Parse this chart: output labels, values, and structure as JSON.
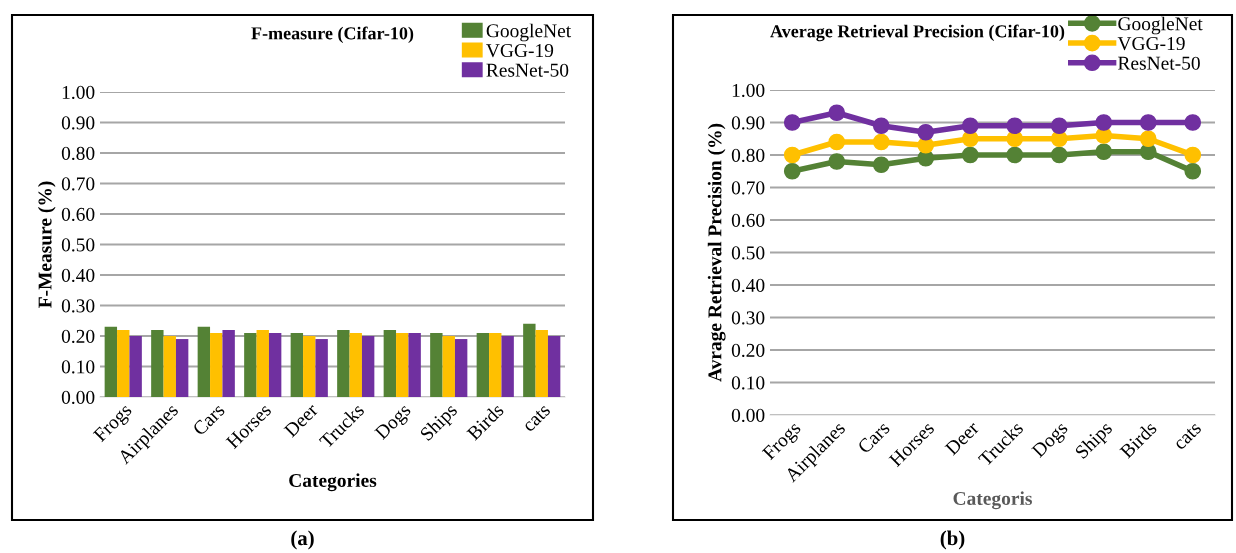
{
  "chart_data": [
    {
      "type": "bar",
      "title": "F-measure (Cifar-10)",
      "xlabel": "Categories",
      "ylabel": "F-Measure (%)",
      "categories": [
        "Frogs",
        "Airplanes",
        "Cars",
        "Horses",
        "Deer",
        "Trucks",
        "Dogs",
        "Ships",
        "Birds",
        "cats"
      ],
      "series": [
        {
          "name": "GoogleNet",
          "color": "#548235",
          "values": [
            0.23,
            0.22,
            0.23,
            0.21,
            0.21,
            0.22,
            0.22,
            0.21,
            0.21,
            0.24
          ]
        },
        {
          "name": "VGG-19",
          "color": "#ffc000",
          "values": [
            0.22,
            0.2,
            0.21,
            0.22,
            0.2,
            0.21,
            0.21,
            0.2,
            0.21,
            0.22
          ]
        },
        {
          "name": "ResNet-50",
          "color": "#7030a0",
          "values": [
            0.2,
            0.19,
            0.22,
            0.21,
            0.19,
            0.2,
            0.21,
            0.19,
            0.2,
            0.2
          ]
        }
      ],
      "ylim": [
        0,
        1
      ],
      "yticks": [
        {
          "value": 0,
          "label": "0.00"
        },
        {
          "value": 0.1,
          "label": "0.10"
        },
        {
          "value": 0.2,
          "label": "0.20"
        },
        {
          "value": 0.3,
          "label": "0.30"
        },
        {
          "value": 0.4,
          "label": "0.40"
        },
        {
          "value": 0.5,
          "label": "0.50"
        },
        {
          "value": 0.6,
          "label": "0.60"
        },
        {
          "value": 0.7,
          "label": "0.70"
        },
        {
          "value": 0.8,
          "label": "0.80"
        },
        {
          "value": 0.9,
          "label": "0.90"
        },
        {
          "value": 1,
          "label": "1.00"
        }
      ],
      "grid": "y",
      "legend": "top right",
      "annotations": [
        "(a)"
      ]
    },
    {
      "type": "line",
      "title": "Average Retrieval Precision (Cifar-10)",
      "xlabel": "Categoris",
      "ylabel": "Avrage Retrieval Precision (%)",
      "categories": [
        "Frogs",
        "Airplanes",
        "Cars",
        "Horses",
        "Deer",
        "Trucks",
        "Dogs",
        "Ships",
        "Birds",
        "cats"
      ],
      "series": [
        {
          "name": "GoogleNet",
          "color": "#548235",
          "values": [
            0.75,
            0.78,
            0.77,
            0.79,
            0.8,
            0.8,
            0.8,
            0.81,
            0.81,
            0.75
          ]
        },
        {
          "name": "VGG-19",
          "color": "#ffc000",
          "values": [
            0.8,
            0.84,
            0.84,
            0.83,
            0.85,
            0.85,
            0.85,
            0.86,
            0.85,
            0.8
          ]
        },
        {
          "name": "ResNet-50",
          "color": "#7030a0",
          "values": [
            0.9,
            0.93,
            0.89,
            0.87,
            0.89,
            0.89,
            0.89,
            0.9,
            0.9,
            0.9
          ]
        }
      ],
      "ylim": [
        0,
        1
      ],
      "yticks": [
        {
          "value": 0,
          "label": "0.00"
        },
        {
          "value": 0.1,
          "label": "0.10"
        },
        {
          "value": 0.2,
          "label": "0.20"
        },
        {
          "value": 0.3,
          "label": "0.30"
        },
        {
          "value": 0.4,
          "label": "0.40"
        },
        {
          "value": 0.5,
          "label": "0.50"
        },
        {
          "value": 0.6,
          "label": "0.60"
        },
        {
          "value": 0.7,
          "label": "0.70"
        },
        {
          "value": 0.8,
          "label": "0.80"
        },
        {
          "value": 0.9,
          "label": "0.90"
        },
        {
          "value": 1,
          "label": "1.00"
        }
      ],
      "grid": "y",
      "legend": "top right",
      "marker": "circle",
      "line_style": "solid",
      "annotations": [
        "(b)"
      ]
    }
  ]
}
